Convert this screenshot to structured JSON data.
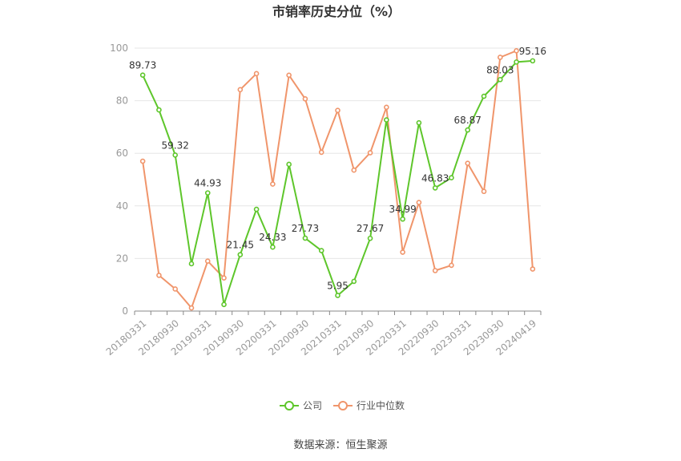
{
  "chart_data": {
    "type": "line",
    "title": "市销率历史分位（%）",
    "source": "数据来源：恒生聚源",
    "ylim": [
      0,
      100
    ],
    "y_ticks": [
      0,
      20,
      40,
      60,
      80,
      100
    ],
    "grid": true,
    "legend_position": "bottom",
    "x": [
      "20180331",
      "20180630",
      "20180930",
      "20181231",
      "20190331",
      "20190630",
      "20190930",
      "20191231",
      "20200331",
      "20200630",
      "20200930",
      "20201231",
      "20210331",
      "20210630",
      "20210930",
      "20211231",
      "20220331",
      "20220630",
      "20220930",
      "20221231",
      "20230331",
      "20230630",
      "20230930",
      "20231231",
      "20240419"
    ],
    "x_tick_labels": [
      "20180331",
      "20180930",
      "20190331",
      "20190930",
      "20200331",
      "20200930",
      "20210331",
      "20210930",
      "20220331",
      "20220930",
      "20230331",
      "20230930",
      "20240419"
    ],
    "series": [
      {
        "name": "公司",
        "color": "#5ec62b",
        "values": [
          89.73,
          76.5,
          59.32,
          18.0,
          44.93,
          2.5,
          21.45,
          38.7,
          24.33,
          55.8,
          27.73,
          23.0,
          5.95,
          11.3,
          27.67,
          72.7,
          34.99,
          71.6,
          46.83,
          50.7,
          68.87,
          81.7,
          88.03,
          94.7,
          95.16
        ],
        "labels": {
          "0": "89.73",
          "2": "59.32",
          "4": "44.93",
          "6": "21.45",
          "8": "24.33",
          "10": "27.73",
          "12": "5.95",
          "14": "27.67",
          "16": "34.99",
          "18": "46.83",
          "20": "68.87",
          "22": "88.03",
          "24": "95.16"
        }
      },
      {
        "name": "行业中位数",
        "color": "#f0956b",
        "values": [
          57.0,
          13.6,
          8.4,
          1.2,
          19.0,
          12.6,
          84.2,
          90.3,
          48.3,
          89.7,
          80.7,
          60.4,
          76.3,
          53.6,
          60.2,
          77.5,
          22.4,
          41.3,
          15.4,
          17.4,
          56.2,
          45.5,
          96.5,
          99.0,
          16.0
        ]
      }
    ]
  }
}
